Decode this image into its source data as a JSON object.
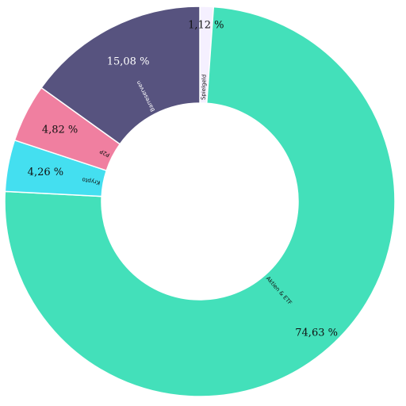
{
  "chart_data": {
    "type": "pie",
    "donut": true,
    "start_angle_deg": 0,
    "direction": "clockwise",
    "slices": [
      {
        "label": "Spielgeld",
        "value": 1.12,
        "value_label": "1,12 %",
        "color": "#f5f0ff",
        "pct_color": "#111111"
      },
      {
        "label": "Aktien & ETF",
        "value": 74.63,
        "value_label": "74,63 %",
        "color": "#43e0ba",
        "pct_color": "#111111"
      },
      {
        "label": "Krypto",
        "value": 4.26,
        "value_label": "4,26 %",
        "color": "#44dff0",
        "pct_color": "#111111"
      },
      {
        "label": "P2P",
        "value": 4.82,
        "value_label": "4,82 %",
        "color": "#f07fa0",
        "pct_color": "#111111"
      },
      {
        "label": "Barreserven",
        "value": 15.08,
        "value_label": "15,08 %",
        "color": "#57537f",
        "pct_color": "#ffffff"
      }
    ],
    "legend": "none"
  }
}
